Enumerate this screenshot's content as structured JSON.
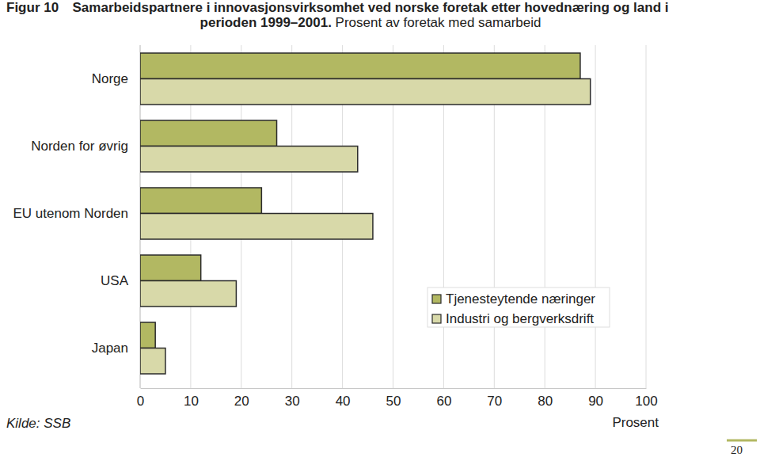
{
  "chart_data": {
    "type": "bar",
    "orientation": "horizontal",
    "title": "Samarbeidspartnere i innovasjonsvirksomhet ved norske foretak etter hovednæring og land i perioden 1999–2001.",
    "subtitle": "Prosent av foretak med samarbeid",
    "xlabel": "Prosent",
    "annotations": [
      "Figur 10",
      "Kilde: SSB",
      "20"
    ],
    "categories": [
      "Norge",
      "Norden for øvrig",
      "EU utenom Norden",
      "USA",
      "Japan"
    ],
    "series": [
      {
        "name": "Tjenesteytende næringer",
        "color": "#b2b862",
        "values": [
          87,
          27,
          24,
          12,
          3
        ]
      },
      {
        "name": "Industri og bergverksdrift",
        "color": "#d8d9a9",
        "values": [
          89,
          43,
          46,
          19,
          5
        ]
      }
    ],
    "xlim": [
      0,
      100
    ],
    "xticks": [
      0,
      10,
      20,
      30,
      40,
      50,
      60,
      70,
      80,
      90,
      100
    ],
    "grid": true,
    "legend": "lower-right"
  }
}
